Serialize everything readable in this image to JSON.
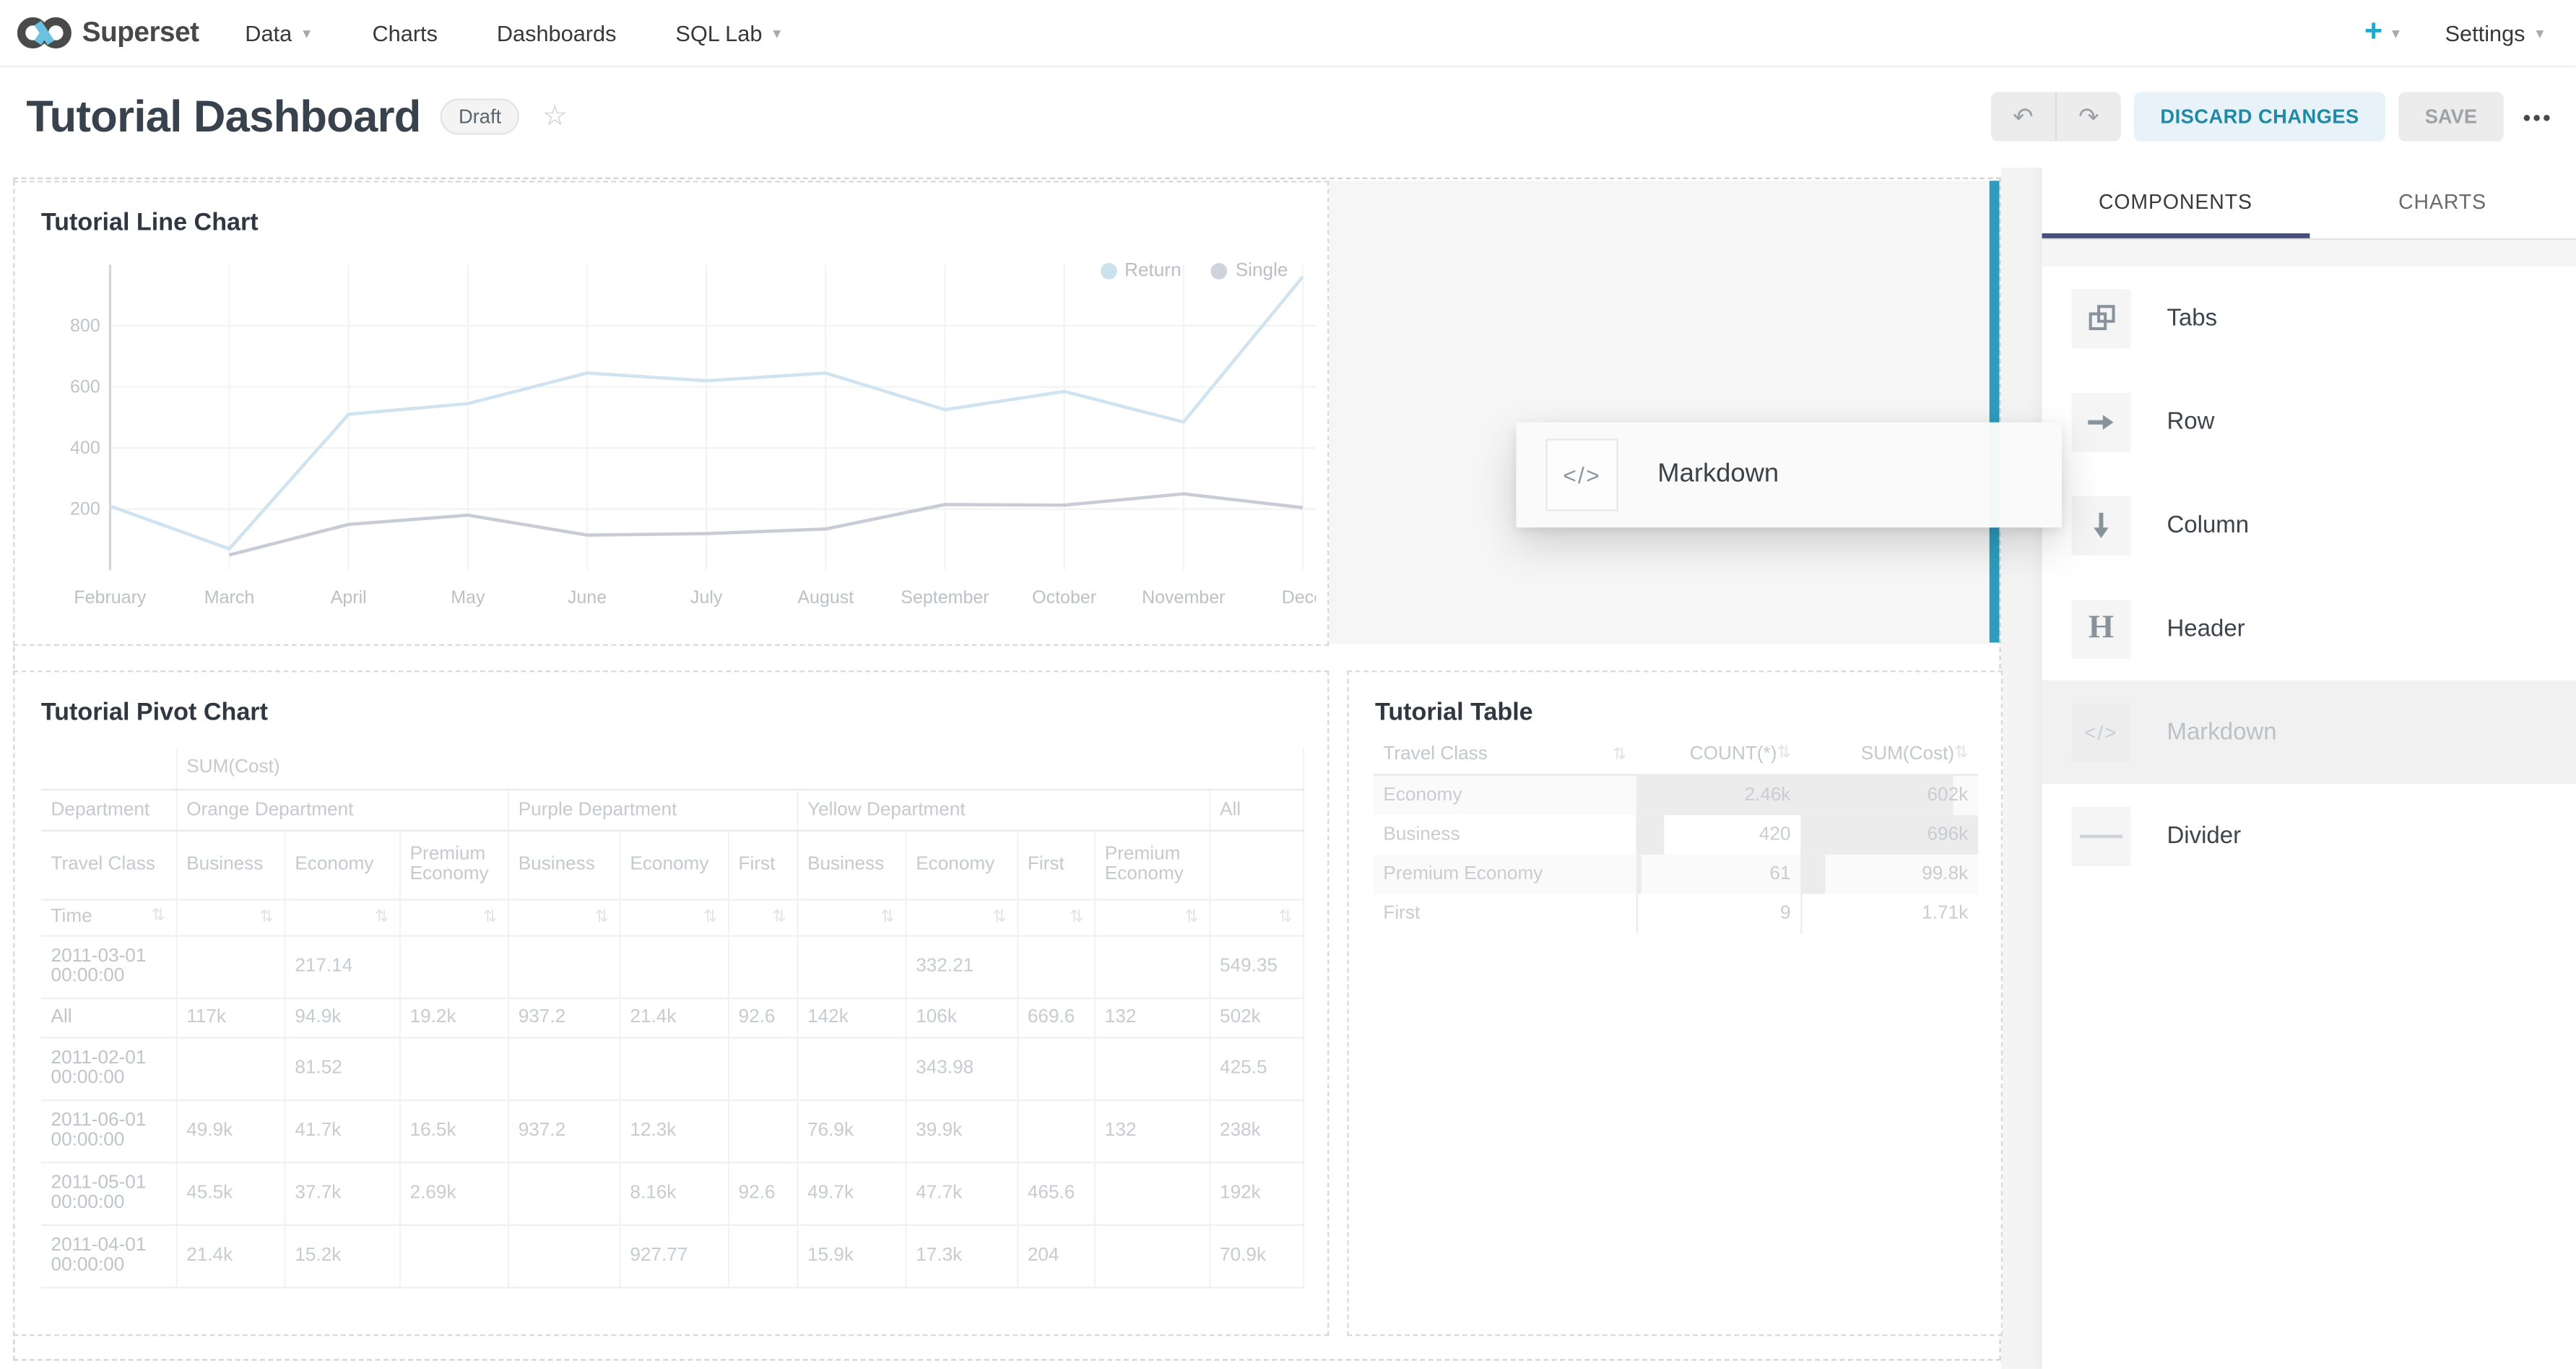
{
  "navbar": {
    "brand": "Superset",
    "items": [
      {
        "label": "Data",
        "caret": true
      },
      {
        "label": "Charts",
        "caret": false
      },
      {
        "label": "Dashboards",
        "caret": false
      },
      {
        "label": "SQL Lab",
        "caret": true
      }
    ],
    "plus_label": "+",
    "settings_label": "Settings"
  },
  "header": {
    "title": "Tutorial Dashboard",
    "status_badge": "Draft",
    "star_icon": "star-outline",
    "undo_icon": "undo-arrow",
    "redo_icon": "redo-arrow",
    "discard_label": "DISCARD CHANGES",
    "save_label": "SAVE",
    "more_label": "•••"
  },
  "builder_panel": {
    "tabs": [
      "COMPONENTS",
      "CHARTS"
    ],
    "active_tab": "COMPONENTS",
    "items": [
      {
        "label": "Tabs",
        "icon": "tabs-icon",
        "dragging": false
      },
      {
        "label": "Row",
        "icon": "row-icon",
        "dragging": false
      },
      {
        "label": "Column",
        "icon": "column-icon",
        "dragging": false
      },
      {
        "label": "Header",
        "icon": "header-icon",
        "dragging": false
      },
      {
        "label": "Markdown",
        "icon": "markdown-icon",
        "dragging": true
      },
      {
        "label": "Divider",
        "icon": "divider-icon",
        "dragging": false
      }
    ]
  },
  "drag_preview": {
    "label": "Markdown",
    "icon": "markdown-icon"
  },
  "colors": {
    "accent": "#20a7c9",
    "drop_indicator": "#2d9cbd",
    "tab_underline": "#454e7e",
    "return_line": "#cfe4f0",
    "single_line": "#c8ccd7"
  },
  "line_chart": {
    "title": "Tutorial Line Chart",
    "chart_data": {
      "type": "line",
      "x": [
        "February",
        "March",
        "April",
        "May",
        "June",
        "July",
        "August",
        "September",
        "October",
        "November",
        "December"
      ],
      "x_tick_labels": [
        "February",
        "March",
        "April",
        "May",
        "June",
        "July",
        "August",
        "September",
        "October",
        "November",
        "Dece"
      ],
      "series": [
        {
          "name": "Return",
          "color": "#cfe4f0",
          "dot_color": "#bedbea",
          "values": [
            210,
            70,
            510,
            545,
            645,
            620,
            645,
            525,
            585,
            485,
            960
          ]
        },
        {
          "name": "Single",
          "color": "#c8ccd7",
          "dot_color": "#c4c9d4",
          "values": [
            null,
            50,
            150,
            180,
            115,
            120,
            135,
            215,
            213,
            250,
            205
          ]
        }
      ],
      "ylim": [
        0,
        1000
      ],
      "yticks": [
        200,
        400,
        600,
        800
      ],
      "grid": true,
      "legend_position": "top-right"
    }
  },
  "pivot_chart": {
    "title": "Tutorial Pivot Chart",
    "chart_data": {
      "type": "table",
      "metric_header": "SUM(Cost)",
      "department_label": "Department",
      "travel_class_label": "Travel Class",
      "time_label": "Time",
      "sort_icon": "⇅",
      "col_groups": [
        {
          "label": "Orange Department",
          "cols": [
            "Business",
            "Economy",
            "Premium Economy"
          ]
        },
        {
          "label": "Purple Department",
          "cols": [
            "Business",
            "Economy",
            "First"
          ]
        },
        {
          "label": "Yellow Department",
          "cols": [
            "Business",
            "Economy",
            "First",
            "Premium Economy"
          ]
        },
        {
          "label": "All",
          "cols": [
            ""
          ]
        }
      ],
      "rows": [
        {
          "time": "2011-03-01 00:00:00",
          "values": [
            "",
            "217.14",
            "",
            "",
            "",
            "",
            "",
            "332.21",
            "",
            "",
            "549.35"
          ]
        },
        {
          "time": "All",
          "values": [
            "117k",
            "94.9k",
            "19.2k",
            "937.2",
            "21.4k",
            "92.6",
            "142k",
            "106k",
            "669.6",
            "132",
            "502k"
          ]
        },
        {
          "time": "2011-02-01 00:00:00",
          "values": [
            "",
            "81.52",
            "",
            "",
            "",
            "",
            "",
            "343.98",
            "",
            "",
            "425.5"
          ]
        },
        {
          "time": "2011-06-01 00:00:00",
          "values": [
            "49.9k",
            "41.7k",
            "16.5k",
            "937.2",
            "12.3k",
            "",
            "76.9k",
            "39.9k",
            "",
            "132",
            "238k"
          ]
        },
        {
          "time": "2011-05-01 00:00:00",
          "values": [
            "45.5k",
            "37.7k",
            "2.69k",
            "",
            "8.16k",
            "92.6",
            "49.7k",
            "47.7k",
            "465.6",
            "",
            "192k"
          ]
        },
        {
          "time": "2011-04-01 00:00:00",
          "values": [
            "21.4k",
            "15.2k",
            "",
            "",
            "927.77",
            "",
            "15.9k",
            "17.3k",
            "204",
            "",
            "70.9k"
          ]
        }
      ]
    }
  },
  "table_chart": {
    "title": "Tutorial Table",
    "chart_data": {
      "type": "table",
      "columns": [
        "Travel Class",
        "COUNT(*)",
        "SUM(Cost)"
      ],
      "sort_icon": "⇅",
      "rows": [
        {
          "travel_class": "Economy",
          "count": "2.46k",
          "count_value": 2460,
          "sum": "602k",
          "sum_value": 602000
        },
        {
          "travel_class": "Business",
          "count": "420",
          "count_value": 420,
          "sum": "696k",
          "sum_value": 696000
        },
        {
          "travel_class": "Premium Economy",
          "count": "61",
          "count_value": 61,
          "sum": "99.8k",
          "sum_value": 99800
        },
        {
          "travel_class": "First",
          "count": "9",
          "count_value": 9,
          "sum": "1.71k",
          "sum_value": 1710
        }
      ]
    }
  }
}
